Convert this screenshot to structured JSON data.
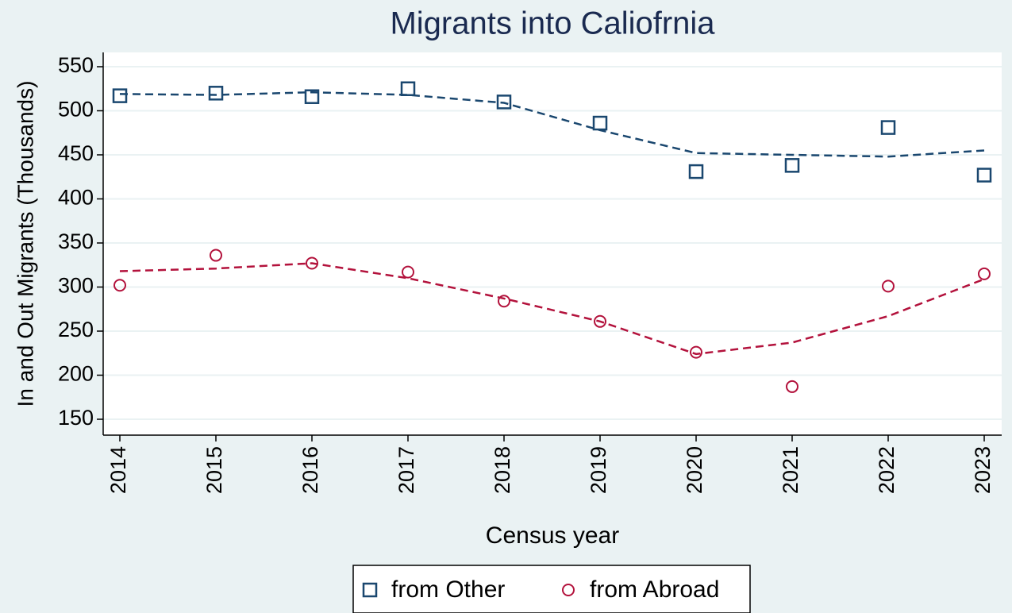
{
  "chart_data": {
    "type": "scatter",
    "title": "Migrants into Caliofrnia",
    "x_label": "Census year",
    "y_label": "In and Out Migrants (Thousands)",
    "categories": [
      "2014",
      "2015",
      "2016",
      "2017",
      "2018",
      "2019",
      "2020",
      "2021",
      "2022",
      "2023"
    ],
    "series": [
      {
        "name": "from Other",
        "color": "#1a476f",
        "marker": "square",
        "values": [
          517,
          520,
          516,
          525,
          510,
          486,
          431,
          438,
          481,
          427
        ],
        "fit_values": [
          519,
          518,
          521,
          518,
          509,
          478,
          452,
          450,
          448,
          455
        ]
      },
      {
        "name": "from Abroad",
        "color": "#b3123c",
        "marker": "circle",
        "values": [
          302,
          336,
          327,
          317,
          284,
          261,
          226,
          187,
          301,
          315
        ],
        "fit_values": [
          318,
          321,
          327,
          310,
          287,
          261,
          224,
          237,
          267,
          309
        ]
      }
    ],
    "ylim": [
      150,
      550
    ],
    "yticks": [
      150,
      200,
      250,
      300,
      350,
      400,
      450,
      500,
      550
    ],
    "grid": true,
    "legend": "bottom"
  }
}
